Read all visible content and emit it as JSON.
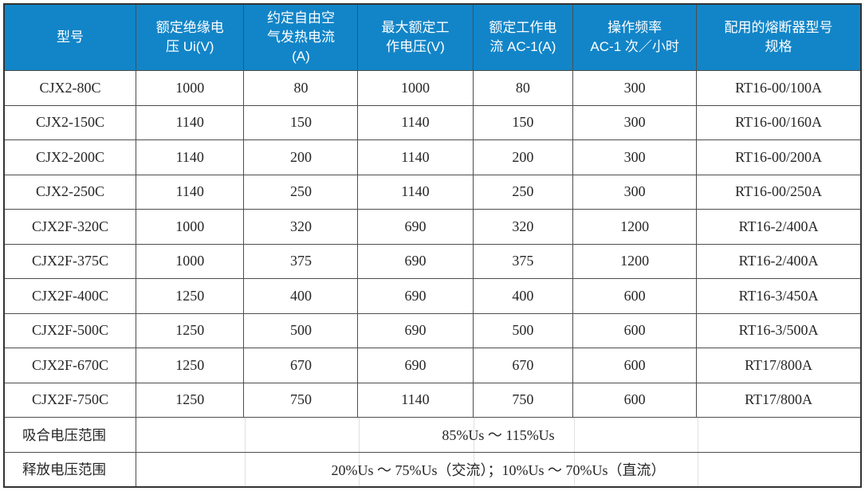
{
  "table": {
    "headers": [
      {
        "label": "型号"
      },
      {
        "label": "额定绝缘电\n压 Ui(V)"
      },
      {
        "label": "约定自由空\n气发热电流\n(A)"
      },
      {
        "label": "最大额定工\n作电压(V)"
      },
      {
        "label": "额定工作电\n流 AC-1(A)"
      },
      {
        "label": "操作频率\nAC-1 次／小时"
      },
      {
        "label": "配用的熔断器型号\n规格"
      }
    ],
    "rows": [
      {
        "cells": [
          "CJX2-80C",
          "1000",
          "80",
          "1000",
          "80",
          "300",
          "RT16-00/100A"
        ]
      },
      {
        "cells": [
          "CJX2-150C",
          "1140",
          "150",
          "1140",
          "150",
          "300",
          "RT16-00/160A"
        ]
      },
      {
        "cells": [
          "CJX2-200C",
          "1140",
          "200",
          "1140",
          "200",
          "300",
          "RT16-00/200A"
        ]
      },
      {
        "cells": [
          "CJX2-250C",
          "1140",
          "250",
          "1140",
          "250",
          "300",
          "RT16-00/250A"
        ]
      },
      {
        "cells": [
          "CJX2F-320C",
          "1000",
          "320",
          "690",
          "320",
          "1200",
          "RT16-2/400A"
        ]
      },
      {
        "cells": [
          "CJX2F-375C",
          "1000",
          "375",
          "690",
          "375",
          "1200",
          "RT16-2/400A"
        ]
      },
      {
        "cells": [
          "CJX2F-400C",
          "1250",
          "400",
          "690",
          "400",
          "600",
          "RT16-3/450A"
        ]
      },
      {
        "cells": [
          "CJX2F-500C",
          "1250",
          "500",
          "690",
          "500",
          "600",
          "RT16-3/500A"
        ]
      },
      {
        "cells": [
          "CJX2F-670C",
          "1250",
          "670",
          "690",
          "670",
          "600",
          "RT17/800A"
        ]
      },
      {
        "cells": [
          "CJX2F-750C",
          "1250",
          "750",
          "1140",
          "750",
          "600",
          "RT17/800A"
        ]
      }
    ],
    "footer_rows": [
      {
        "label": "吸合电压范围",
        "value": "85%Us ～ 115%Us"
      },
      {
        "label": "释放电压范围",
        "value": "20%Us ～ 75%Us（交流）；10%Us ～ 70%Us（直流）"
      }
    ],
    "colors": {
      "header_bg": "#1285C8",
      "header_text": "#FFFFFF",
      "body_text": "#262626",
      "grid_border": "#4D4D4D",
      "outer_border": "#333333",
      "faint_merged_gridline": "#E0E0E0"
    }
  }
}
